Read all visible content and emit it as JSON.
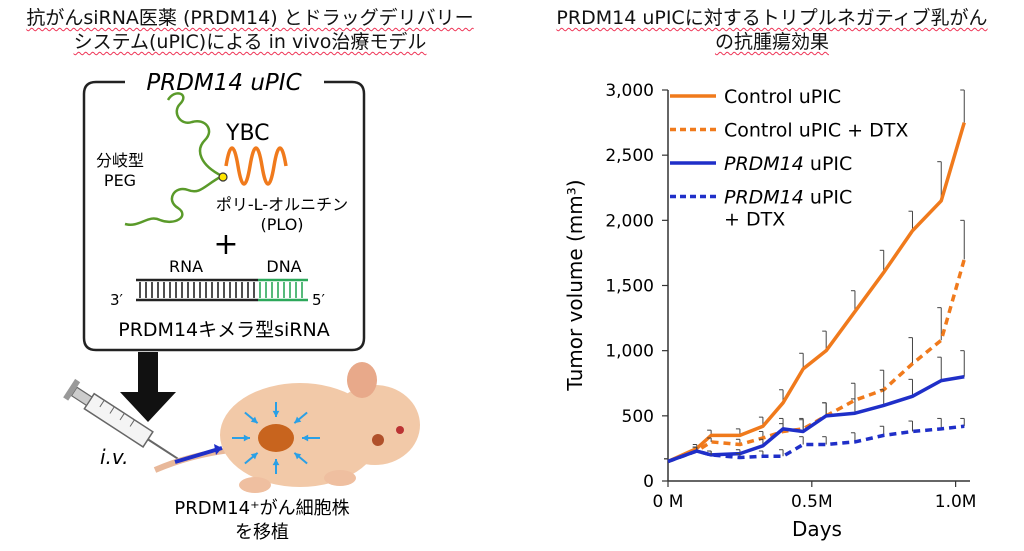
{
  "left_panel": {
    "title_line1": "抗がんsiRNA医薬 (PRDM14) とドラッグデリバリー",
    "title_line2": "システム(uPIC)による in vivo治療モデル",
    "box_title": "PRDM14 uPIC",
    "ybc_label": "YBC",
    "peg_label_1": "分岐型",
    "peg_label_2": "PEG",
    "plo_label_1": "ポリ-L-オルニチン",
    "plo_label_2": "(PLO)",
    "plus_sign": "+",
    "rna_label": "RNA",
    "dna_label": "DNA",
    "end3_label": "3′",
    "end5_label": "5′",
    "sirna_label": "PRDM14キメラ型siRNA",
    "iv_label": "i.v.",
    "cell_line_label_1": "PRDM14⁺がん細胞株",
    "cell_line_label_2": "を移植",
    "colors": {
      "peg": "#5a9a2a",
      "plo": "#f07a1c",
      "dna": "#2ca85a",
      "mouse": "#f2c9a8",
      "tumor": "#c8641e",
      "arrows": "#2aa0e6"
    }
  },
  "right_panel": {
    "title_line1": "PRDM14 uPICに対するトリプルネガティブ乳がん",
    "title_line2": "の抗腫瘍効果"
  },
  "chart_data": {
    "type": "line",
    "xlabel": "Days",
    "ylabel": "Tumor volume (mm³)",
    "xlim": [
      0,
      1.05
    ],
    "ylim": [
      0,
      3000
    ],
    "x_ticks": [
      {
        "value": 0,
        "label": "0 M"
      },
      {
        "value": 0.5,
        "label": "0.5M"
      },
      {
        "value": 1.0,
        "label": "1.0M"
      }
    ],
    "y_ticks": [
      {
        "value": 0,
        "label": "0"
      },
      {
        "value": 500,
        "label": "500"
      },
      {
        "value": 1000,
        "label": "1,000"
      },
      {
        "value": 1500,
        "label": "1,500"
      },
      {
        "value": 2000,
        "label": "2,000"
      },
      {
        "value": 2500,
        "label": "2,500"
      },
      {
        "value": 3000,
        "label": "3,000"
      }
    ],
    "legend_position": "top-left",
    "x": [
      0.0,
      0.1,
      0.15,
      0.25,
      0.33,
      0.4,
      0.47,
      0.55,
      0.65,
      0.75,
      0.85,
      0.95,
      1.03
    ],
    "series": [
      {
        "name": "Control uPIC",
        "color": "#f07a1c",
        "dash": "solid",
        "values": [
          150,
          250,
          350,
          350,
          420,
          600,
          860,
          1000,
          1300,
          1600,
          1920,
          2150,
          2750
        ],
        "error": [
          20,
          30,
          40,
          50,
          70,
          100,
          120,
          150,
          160,
          170,
          150,
          300,
          250
        ]
      },
      {
        "name": "Control uPIC + DTX",
        "color": "#f07a1c",
        "dash": "dashed",
        "values": [
          150,
          230,
          300,
          280,
          330,
          380,
          400,
          500,
          620,
          700,
          900,
          1080,
          1700
        ],
        "error": [
          20,
          30,
          30,
          40,
          50,
          60,
          80,
          100,
          130,
          150,
          200,
          250,
          300
        ]
      },
      {
        "name": "PRDM14 uPIC",
        "color": "#1f2fc8",
        "dash": "solid",
        "values": [
          150,
          230,
          200,
          210,
          270,
          400,
          380,
          500,
          520,
          580,
          650,
          770,
          800
        ],
        "error": [
          20,
          30,
          30,
          30,
          50,
          80,
          90,
          100,
          110,
          120,
          130,
          180,
          200
        ]
      },
      {
        "name": "PRDM14 uPIC + DTX",
        "color": "#1f2fc8",
        "dash": "dashed",
        "values": [
          150,
          230,
          200,
          180,
          190,
          190,
          280,
          280,
          300,
          350,
          380,
          400,
          420
        ],
        "error": [
          20,
          30,
          30,
          30,
          40,
          50,
          60,
          60,
          70,
          70,
          80,
          80,
          60
        ]
      }
    ],
    "legend_entries": [
      {
        "italic": "",
        "text": "Control uPIC",
        "text2": ""
      },
      {
        "italic": "",
        "text": "Control uPIC + DTX",
        "text2": ""
      },
      {
        "italic": "PRDM14",
        "text": " uPIC",
        "text2": ""
      },
      {
        "italic": "PRDM14",
        "text": " uPIC",
        "text2": "+ DTX"
      }
    ]
  }
}
